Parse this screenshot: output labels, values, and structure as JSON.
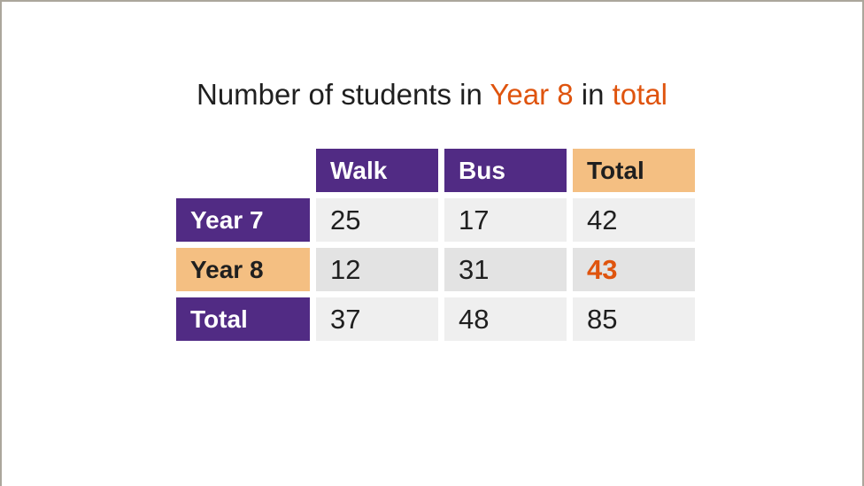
{
  "title": {
    "parts": [
      {
        "text": "Number of students in ",
        "accent": false
      },
      {
        "text": "Year 8",
        "accent": true
      },
      {
        "text": " in ",
        "accent": false
      },
      {
        "text": "total",
        "accent": true
      }
    ],
    "full_text": "Number of students in Year 8 in total"
  },
  "table": {
    "column_headers": [
      "Walk",
      "Bus",
      "Total"
    ],
    "rows": [
      {
        "header": "Year 7",
        "values": [
          "25",
          "17",
          "42"
        ]
      },
      {
        "header": "Year 8",
        "values": [
          "12",
          "31",
          "43"
        ]
      },
      {
        "header": "Total",
        "values": [
          "37",
          "48",
          "85"
        ]
      }
    ]
  },
  "chart_data": {
    "type": "table",
    "title": "Number of students in Year 8 in total",
    "columns": [
      "",
      "Walk",
      "Bus",
      "Total"
    ],
    "rows": [
      [
        "Year 7",
        25,
        17,
        42
      ],
      [
        "Year 8",
        12,
        31,
        43
      ],
      [
        "Total",
        37,
        48,
        85
      ]
    ],
    "highlighted_row": "Year 8",
    "highlighted_cell": {
      "row": "Year 8",
      "column": "Total",
      "value": 43
    }
  },
  "colors": {
    "purple": "#512b84",
    "orange_bg": "#f4bf82",
    "orange_text": "#df540e",
    "dark_text": "#1f1f1f",
    "cell_grey": "#efefef",
    "cell_grey_highlight": "#e3e3e3",
    "frame_border": "#aba69c",
    "background": "#ffffff"
  }
}
